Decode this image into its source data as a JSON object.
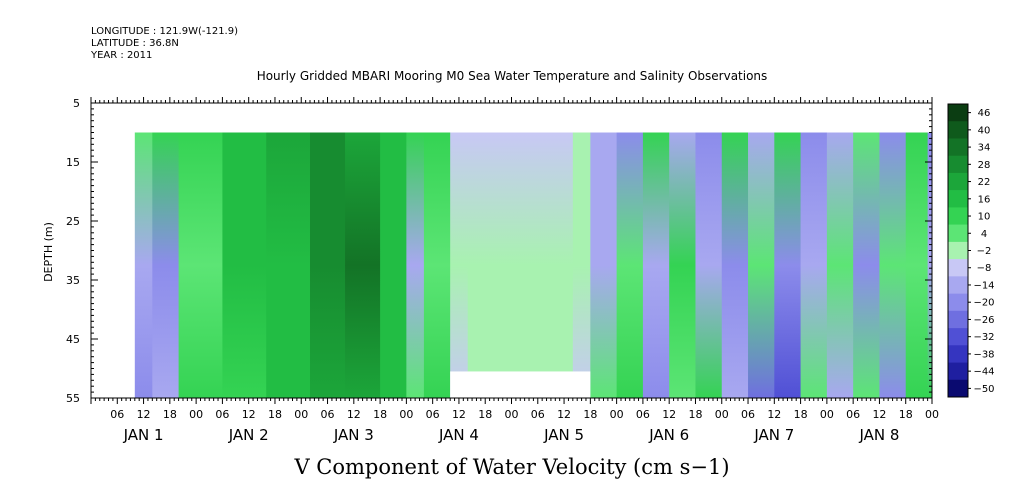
{
  "header": {
    "longitude": "LONGITUDE : 121.9W(-121.9)",
    "latitude": "LATITUDE : 36.8N",
    "year": "YEAR : 2011"
  },
  "chart_data": {
    "type": "heatmap",
    "title": "Hourly Gridded MBARI Mooring M0 Sea Water Temperature and Salinity Observations",
    "xlabel": "",
    "ylabel": "DEPTH (m)",
    "variable_label": "V Component of Water Velocity (cm s−1)",
    "y_axis": {
      "ticks": [
        5,
        15,
        25,
        35,
        45,
        55
      ],
      "range": [
        5,
        55
      ],
      "reversed": true
    },
    "x_axis": {
      "hour_ticks": [
        "06",
        "12",
        "18",
        "00",
        "06",
        "12",
        "18",
        "00",
        "06",
        "12",
        "18",
        "00",
        "06",
        "12",
        "18",
        "00",
        "06",
        "12",
        "18",
        "00",
        "06",
        "12",
        "18",
        "00",
        "06",
        "12",
        "18",
        "00",
        "06",
        "12",
        "18",
        "00"
      ],
      "day_labels": [
        {
          "label": "JAN  1",
          "day": 1
        },
        {
          "label": "JAN  2",
          "day": 2
        },
        {
          "label": "JAN  3",
          "day": 3
        },
        {
          "label": "JAN  4",
          "day": 4
        },
        {
          "label": "JAN  5",
          "day": 5
        },
        {
          "label": "JAN  6",
          "day": 6
        },
        {
          "label": "JAN  7",
          "day": 7
        },
        {
          "label": "JAN  8",
          "day": 8
        }
      ]
    },
    "colorbar": {
      "levels": [
        "46",
        "40",
        "34",
        "28",
        "22",
        "16",
        "10",
        "4",
        "−2",
        "−8",
        "−14",
        "−20",
        "−26",
        "−32",
        "−38",
        "−44",
        "−50"
      ],
      "colors": [
        "#0b3d12",
        "#0f5a1c",
        "#137326",
        "#178c30",
        "#1ca63a",
        "#22bd44",
        "#34d353",
        "#5ce575",
        "#a8f2b0",
        "#c8c8f5",
        "#a8a8f0",
        "#8c8ceb",
        "#6f6fe0",
        "#5050d5",
        "#3535c0",
        "#1f1fa0",
        "#0a0a70"
      ]
    },
    "field_columns": [
      {
        "from_hour": 10,
        "to_hour": 14,
        "top": "#5ce575",
        "mid": "#a8a8f0",
        "bot": "#8c8ceb"
      },
      {
        "from_hour": 14,
        "to_hour": 20,
        "top": "#34d353",
        "mid": "#8c8ceb",
        "bot": "#a8a8f0"
      },
      {
        "from_hour": 20,
        "to_hour": 30,
        "top": "#34d353",
        "mid": "#5ce575",
        "bot": "#34d353"
      },
      {
        "from_hour": 30,
        "to_hour": 40,
        "top": "#22bd44",
        "mid": "#22bd44",
        "bot": "#34d353"
      },
      {
        "from_hour": 40,
        "to_hour": 50,
        "top": "#1ca63a",
        "mid": "#22bd44",
        "bot": "#22bd44"
      },
      {
        "from_hour": 50,
        "to_hour": 58,
        "top": "#178c30",
        "mid": "#178c30",
        "bot": "#1ca63a"
      },
      {
        "from_hour": 58,
        "to_hour": 66,
        "top": "#1ca63a",
        "mid": "#137326",
        "bot": "#1ca63a"
      },
      {
        "from_hour": 66,
        "to_hour": 72,
        "top": "#22bd44",
        "mid": "#22bd44",
        "bot": "#22bd44"
      },
      {
        "from_hour": 72,
        "to_hour": 76,
        "top": "#34d353",
        "mid": "#a8a8f0",
        "bot": "#5ce575"
      },
      {
        "from_hour": 76,
        "to_hour": 82,
        "top": "#34d353",
        "mid": "#5ce575",
        "bot": "#34d353"
      },
      {
        "from_hour": 82,
        "to_hour": 86,
        "top": "#c8c8f5",
        "mid": "#a8f2b0",
        "bot": "#c8c8f5"
      },
      {
        "from_hour": 86,
        "to_hour": 110,
        "top": "#c8c8f5",
        "mid": "#a8f2b0",
        "bot": "#a8f2b0"
      },
      {
        "from_hour": 110,
        "to_hour": 114,
        "top": "#a8f2b0",
        "mid": "#a8f2b0",
        "bot": "#c8c8f5"
      },
      {
        "from_hour": 114,
        "to_hour": 120,
        "top": "#a8a8f0",
        "mid": "#a8a8f0",
        "bot": "#5ce575"
      },
      {
        "from_hour": 120,
        "to_hour": 126,
        "top": "#8c8ceb",
        "mid": "#5ce575",
        "bot": "#34d353"
      },
      {
        "from_hour": 126,
        "to_hour": 132,
        "top": "#34d353",
        "mid": "#a8a8f0",
        "bot": "#8c8ceb"
      },
      {
        "from_hour": 132,
        "to_hour": 138,
        "top": "#a8a8f0",
        "mid": "#34d353",
        "bot": "#5ce575"
      },
      {
        "from_hour": 138,
        "to_hour": 144,
        "top": "#8c8ceb",
        "mid": "#a8a8f0",
        "bot": "#34d353"
      },
      {
        "from_hour": 144,
        "to_hour": 150,
        "top": "#34d353",
        "mid": "#8c8ceb",
        "bot": "#a8a8f0"
      },
      {
        "from_hour": 150,
        "to_hour": 156,
        "top": "#a8a8f0",
        "mid": "#5ce575",
        "bot": "#6f6fe0"
      },
      {
        "from_hour": 156,
        "to_hour": 162,
        "top": "#34d353",
        "mid": "#8c8ceb",
        "bot": "#5050d5"
      },
      {
        "from_hour": 162,
        "to_hour": 168,
        "top": "#8c8ceb",
        "mid": "#a8a8f0",
        "bot": "#5ce575"
      },
      {
        "from_hour": 168,
        "to_hour": 174,
        "top": "#a8a8f0",
        "mid": "#5ce575",
        "bot": "#a8a8f0"
      },
      {
        "from_hour": 174,
        "to_hour": 180,
        "top": "#5ce575",
        "mid": "#8c8ceb",
        "bot": "#5ce575"
      },
      {
        "from_hour": 180,
        "to_hour": 186,
        "top": "#8c8ceb",
        "mid": "#5ce575",
        "bot": "#8c8ceb"
      },
      {
        "from_hour": 186,
        "to_hour": 191,
        "top": "#34d353",
        "mid": "#5ce575",
        "bot": "#34d353"
      },
      {
        "from_hour": 191,
        "to_hour": 192,
        "top": "#8c8ceb",
        "mid": "#a8a8f0",
        "bot": "#34d353"
      }
    ]
  }
}
